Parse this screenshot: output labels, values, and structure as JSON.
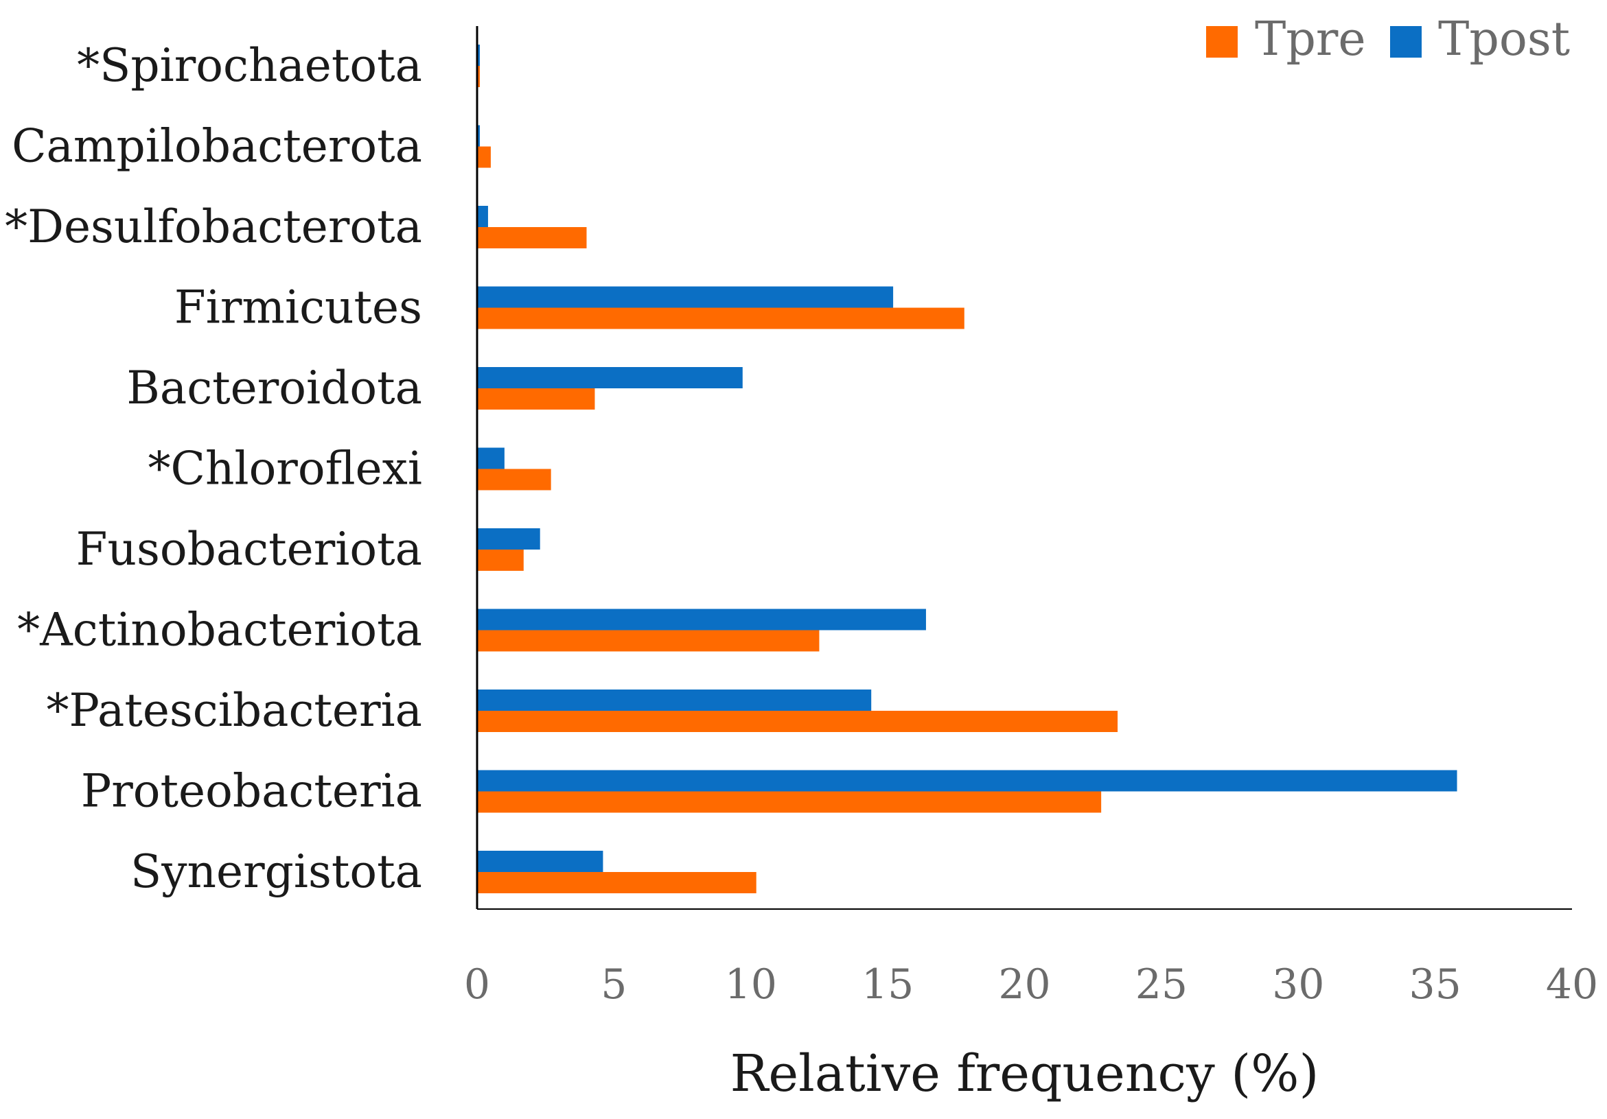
{
  "chart_data": {
    "type": "bar",
    "orientation": "horizontal",
    "categories": [
      "*Spirochaetota",
      "Campilobacterota",
      "*Desulfobacterota",
      "Firmicutes",
      "Bacteroidota",
      "*Chloroflexi",
      "Fusobacteriota",
      "*Actinobacteriota",
      "*Patescibacteria",
      "Proteobacteria",
      "Synergistota"
    ],
    "series": [
      {
        "name": "Tpre",
        "color": "#FF6A00",
        "values": [
          0.1,
          0.5,
          4.0,
          17.8,
          4.3,
          2.7,
          1.7,
          12.5,
          23.4,
          22.8,
          10.2
        ]
      },
      {
        "name": "Tpost",
        "color": "#0B6FC4",
        "values": [
          0.1,
          0.1,
          0.4,
          15.2,
          9.7,
          1.0,
          2.3,
          16.4,
          14.4,
          35.8,
          4.6
        ]
      }
    ],
    "xlabel": "Relative frequency (%)",
    "ylabel": "",
    "xlim": [
      0,
      40
    ],
    "xticks": [
      "0",
      "5",
      "10",
      "15",
      "20",
      "25",
      "30",
      "35",
      "40"
    ],
    "grid": false,
    "legend_position": "top-right"
  }
}
